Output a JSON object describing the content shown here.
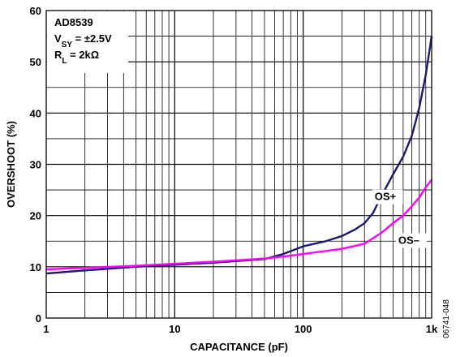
{
  "chart_data": {
    "type": "line",
    "xlabel": "CAPACITANCE (pF)",
    "ylabel": "OVERSHOOT (%)",
    "x_scale": "log",
    "xlim": [
      1,
      1000
    ],
    "ylim": [
      0,
      60
    ],
    "x_ticks": [
      "1",
      "10",
      "100",
      "1k"
    ],
    "y_ticks": [
      "0",
      "10",
      "20",
      "30",
      "40",
      "50",
      "60"
    ],
    "grid": true,
    "annotation": {
      "lines": [
        {
          "main": "AD8539",
          "sub": "",
          "rest": ""
        },
        {
          "main": "V",
          "sub": "SY",
          "rest": " = ±2.5V"
        },
        {
          "main": "R",
          "sub": "L",
          "rest": " = 2kΩ"
        }
      ]
    },
    "figure_id": "06741-048",
    "series": [
      {
        "name": "OS+",
        "color": "#1a1a6e",
        "points": [
          [
            1,
            8.7
          ],
          [
            2,
            9.3
          ],
          [
            5,
            10.0
          ],
          [
            10,
            10.4
          ],
          [
            20,
            10.8
          ],
          [
            50,
            11.5
          ],
          [
            70,
            12.5
          ],
          [
            100,
            14.0
          ],
          [
            150,
            15.0
          ],
          [
            200,
            16.0
          ],
          [
            250,
            17.2
          ],
          [
            300,
            18.5
          ],
          [
            350,
            20.5
          ],
          [
            400,
            23.5
          ],
          [
            500,
            28.0
          ],
          [
            600,
            31.5
          ],
          [
            700,
            35.5
          ],
          [
            800,
            41.0
          ],
          [
            900,
            47.5
          ],
          [
            1000,
            55.0
          ]
        ]
      },
      {
        "name": "OS–",
        "color": "#ff00ff",
        "points": [
          [
            1,
            9.5
          ],
          [
            2,
            9.8
          ],
          [
            5,
            10.2
          ],
          [
            10,
            10.6
          ],
          [
            20,
            11.0
          ],
          [
            50,
            11.6
          ],
          [
            70,
            12.0
          ],
          [
            100,
            12.5
          ],
          [
            200,
            13.5
          ],
          [
            300,
            14.5
          ],
          [
            400,
            16.5
          ],
          [
            500,
            18.5
          ],
          [
            600,
            20.0
          ],
          [
            700,
            21.8
          ],
          [
            800,
            23.5
          ],
          [
            900,
            25.5
          ],
          [
            1000,
            27.0
          ]
        ]
      }
    ],
    "series_labels": [
      {
        "series": "OS+",
        "x": 360,
        "y": 23
      },
      {
        "series": "OS–",
        "x": 550,
        "y": 14.5
      }
    ]
  }
}
